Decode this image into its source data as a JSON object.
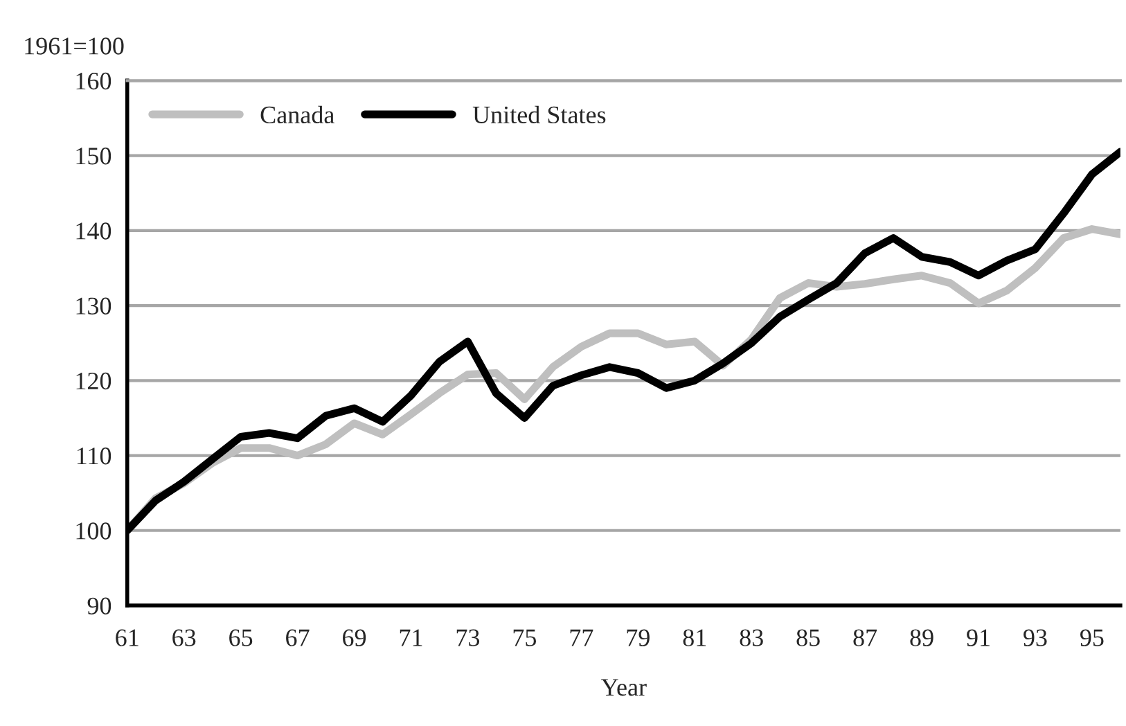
{
  "chart_data": {
    "type": "line",
    "ylabel": "1961=100",
    "xlabel": "Year",
    "categories": [
      "61",
      null,
      "63",
      null,
      "65",
      null,
      "67",
      null,
      "69",
      null,
      "71",
      null,
      "73",
      null,
      "75",
      null,
      "77",
      null,
      "79",
      null,
      "81",
      null,
      "83",
      null,
      "85",
      null,
      "87",
      null,
      "89",
      null,
      "91",
      null,
      "93",
      null,
      "95",
      null
    ],
    "series": [
      {
        "name": "Canada",
        "color": "#bfbfbf",
        "values": [
          100,
          104.3,
          106.3,
          109,
          111,
          111,
          110,
          111.5,
          114.3,
          112.8,
          115.5,
          118.3,
          120.8,
          121,
          117.5,
          121.8,
          124.5,
          126.3,
          126.3,
          124.8,
          125.2,
          122,
          125.5,
          131,
          133,
          132.5,
          132.9,
          133.5,
          134,
          133,
          130.3,
          132,
          135,
          139,
          140.2,
          139.5
        ]
      },
      {
        "name": "United States",
        "color": "#000000",
        "values": [
          100,
          104,
          106.5,
          109.5,
          112.5,
          113,
          112.3,
          115.3,
          116.3,
          114.5,
          118,
          122.5,
          125.2,
          118.3,
          115,
          119.3,
          120.7,
          121.8,
          121,
          119,
          120,
          122.3,
          125,
          128.5,
          130.8,
          133,
          137,
          139,
          136.5,
          135.8,
          134,
          136,
          137.5,
          142.3,
          147.5,
          150.5
        ]
      }
    ],
    "ylim": [
      90,
      160
    ],
    "yticks": [
      90,
      100,
      110,
      120,
      130,
      140,
      150,
      160
    ],
    "grid": "y",
    "legend": "top left",
    "marker": "none",
    "line_style": "solid"
  }
}
